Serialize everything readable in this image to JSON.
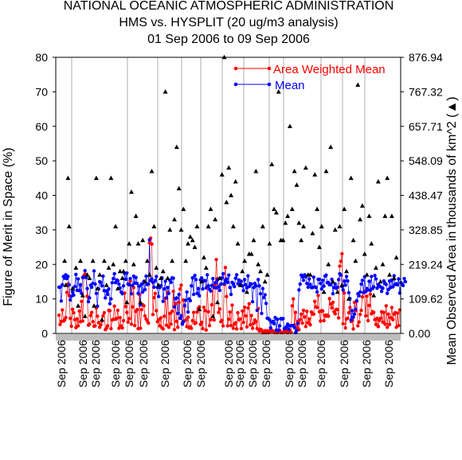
{
  "header": {
    "title_line1": "NATIONAL OCEANIC ATMOSPHERIC ADMINISTRATION",
    "title_line2": "HMS vs. HYSPLIT (20 ug/m3 analysis)",
    "title_line3": "01 Sep 2006 to 09 Sep 2006"
  },
  "chart_data": {
    "type": "line",
    "ylabel": "Figure of Merit in Space (%)",
    "y2label": "Mean Observed Area in thousands of km^2 (▲)",
    "ylim": [
      0,
      80
    ],
    "y2lim": [
      0,
      876.94
    ],
    "yticks": [
      "0",
      "10",
      "20",
      "30",
      "40",
      "50",
      "60",
      "70",
      "80"
    ],
    "y2ticks": [
      "0.00",
      "109.62",
      "219.24",
      "328.85",
      "438.47",
      "548.09",
      "657.71",
      "767.32",
      "876.94"
    ],
    "xtick_label": "Sep 2006",
    "x_count": 300,
    "series": [
      {
        "name": "Area Weighted Mean",
        "color": "#ff0000",
        "values": [
          5.3,
          2.6,
          3.5,
          6.8,
          3.6,
          3.9,
          4.6,
          11.9,
          14.4,
          11.0,
          4.4,
          2.1,
          7.0,
          6.0,
          4.0,
          1.7,
          4.2,
          2.2,
          6.5,
          3.4,
          9.3,
          3.6,
          16.7,
          17.2,
          16.5,
          10.8,
          2.4,
          2.7,
          5.2,
          6.1,
          3.4,
          2.1,
          2.2,
          7.4,
          5.0,
          3.1,
          1.8,
          2.5,
          3.6,
          5.1,
          6.0,
          1.1,
          1.5,
          2.2,
          6.7,
          6.6,
          1.4,
          3.9,
          4.1,
          7.9,
          4.1,
          4.4,
          6.7,
          1.5,
          4.6,
          2.2,
          1.6,
          3.7,
          11.7,
          7.8,
          6.1,
          3.3,
          4.3,
          15.2,
          2.7,
          7.7,
          13.3,
          2.3,
          6.4,
          6.9,
          1.4,
          11.3,
          1.5,
          6.9,
          8.3,
          8.0,
          5.1,
          4.2,
          3.6,
          3.0,
          26.2,
          27.6,
          25.9,
          5.5,
          10.4,
          11.6,
          6.6,
          3.4,
          4.0,
          2.2,
          4.5,
          1.6,
          1.3,
          5.0,
          10.2,
          2.4,
          11.9,
          1.8,
          5.8,
          2.7,
          6.4,
          12.2,
          1.1,
          8.6,
          3.5,
          1.8,
          9.0,
          12.9,
          14.0,
          3.1,
          9.7,
          7.9,
          3.9,
          2.0,
          4.7,
          1.6,
          1.9,
          1.5,
          3.7,
          6.1,
          2.9,
          3.1,
          6.2,
          7.2,
          7.7,
          2.6,
          3.2,
          1.4,
          7.6,
          6.6,
          1.0,
          13.6,
          6.3,
          2.3,
          4.0,
          8.3,
          13.9,
          3.9,
          14.1,
          21.4,
          15.9,
          6.1,
          7.1,
          3.4,
          3.8,
          2.2,
          14.2,
          19.1,
          10.7,
          2.2,
          4.1,
          6.2,
          2.3,
          8.2,
          1.5,
          2.7,
          3.1,
          1.3,
          6.0,
          4.0,
          4.2,
          1.4,
          6.5,
          3.2,
          7.6,
          5.1,
          1.9,
          7.4,
          8.6,
          2.5,
          5.2,
          1.5,
          2.9,
          3.9,
          3.4,
          1.4,
          7.2,
          0.7,
          1.2,
          1.0,
          0.2,
          0.1,
          0.8,
          0.1,
          0.8,
          0.2,
          0.4,
          1.0,
          0.9,
          0.4,
          0.6,
          0.1,
          0.8,
          0.2,
          0.9,
          0.9,
          0.3,
          0.2,
          0.2,
          0.8,
          0.6,
          0.8,
          0.1,
          0.7,
          0.8,
          0.3,
          8.0,
          10.0,
          2.5,
          6.1,
          1.6,
          3.5,
          1.1,
          4.0,
          5.6,
          3.0,
          6.7,
          4.8,
          2.0,
          6.4,
          3.1,
          4.2,
          2.5,
          6.2,
          5.6,
          5.6,
          9.3,
          7.7,
          7.5,
          11.0,
          6.3,
          3.6,
          6.6,
          6.5,
          3.7,
          5.3,
          5.0,
          5.3,
          5.0,
          10.1,
          8.5,
          7.4,
          9.0,
          6.3,
          5.7,
          7.0,
          6.9,
          4.5,
          19.5,
          20.9,
          23.1,
          2.8,
          11.7,
          1.6,
          4.2,
          4.4,
          6.0,
          7.5,
          3.5,
          3.8,
          1.3,
          9.0,
          6.6,
          9.3,
          2.2,
          3.3,
          5.5,
          6.7,
          10.6,
          11.8,
          12.2,
          5.1,
          10.8,
          3.7,
          8.1,
          11.4,
          5.7,
          6.3,
          6.1,
          4.0,
          2.6,
          4.4,
          2.0,
          3.8,
          4.4,
          6.3,
          3.3,
          6.1,
          2.7,
          8.0,
          1.8,
          5.6,
          2.6,
          4.6,
          7.5,
          4.0,
          5.6,
          6.0,
          1.8,
          5.9,
          2.3,
          6.8
        ]
      },
      {
        "name": "Mean",
        "color": "#0000ff",
        "values": [
          13.4,
          13.4,
          9.4,
          14.1,
          16.5,
          16.0,
          17.0,
          15.9,
          16.5,
          14.1,
          9.7,
          10.8,
          12.0,
          11.1,
          13.6,
          17.1,
          12.5,
          15.8,
          12.4,
          14.1,
          11.6,
          16.2,
          16.3,
          18.2,
          16.2,
          13.0,
          9.2,
          10.3,
          14.0,
          13.4,
          14.5,
          18.1,
          14.3,
          11.6,
          7.9,
          12.9,
          15.0,
          14.7,
          13.8,
          16.6,
          12.4,
          10.3,
          12.3,
          11.3,
          12.9,
          8.6,
          10.0,
          14.7,
          15.9,
          17.3,
          14.7,
          15.5,
          15.3,
          14.3,
          13.2,
          12.0,
          11.5,
          13.8,
          17.4,
          15.7,
          17.5,
          14.3,
          14.1,
          15.9,
          11.5,
          13.9,
          16.6,
          14.6,
          16.2,
          14.5,
          11.6,
          13.7,
          8.3,
          14.3,
          12.0,
          15.1,
          12.7,
          16.6,
          14.2,
          14.3,
          27.1,
          15.3,
          15.8,
          14.8,
          13.4,
          15.3,
          16.5,
          13.3,
          10.7,
          13.3,
          13.8,
          16.1,
          9.3,
          12.9,
          15.1,
          10.3,
          13.3,
          11.6,
          15.4,
          14.8,
          16.1,
          16.0,
          7.7,
          10.1,
          10.3,
          5.8,
          11.3,
          4.4,
          5.1,
          2.7,
          3.4,
          8.1,
          9.6,
          12.0,
          6.2,
          10.0,
          9.5,
          13.8,
          16.1,
          11.3,
          16.8,
          15.6,
          11.6,
          13.0,
          10.9,
          15.5,
          16.1,
          12.9,
          15.3,
          15.3,
          13.2,
          17.0,
          13.8,
          12.8,
          12.3,
          13.9,
          15.9,
          13.3,
          14.7,
          13.2,
          15.5,
          13.5,
          12.5,
          14.3,
          16.1,
          17.3,
          14.4,
          15.3,
          15.8,
          14.8,
          16.9,
          13.3,
          11.3,
          14.8,
          14.4,
          13.6,
          16.0,
          17.0,
          14.4,
          15.5,
          14.1,
          15.1,
          13.8,
          12.4,
          15.6,
          14.1,
          13.2,
          16.7,
          13.6,
          14.4,
          14.3,
          9.2,
          13.3,
          14.5,
          13.8,
          6.7,
          15.6,
          13.8,
          11.5,
          5.8,
          13.0,
          10.4,
          11.2,
          8.7,
          4.4,
          4.3,
          4.0,
          1.6,
          3.3,
          3.5,
          2.8,
          4.6,
          1.0,
          4.1,
          0.9,
          2.2,
          4.3,
          4.2,
          4.3,
          1.4,
          1.5,
          2.0,
          2.7,
          1.2,
          2.2,
          2.3,
          2.3,
          2.3,
          1.7,
          0.2,
          0.8,
          2.9,
          12.6,
          14.3,
          16.9,
          16.4,
          15.4,
          17.0,
          16.4,
          14.5,
          13.4,
          15.8,
          14.2,
          13.3,
          13.3,
          16.3,
          13.5,
          13.3,
          12.0,
          15.7,
          15.7,
          14.5,
          12.9,
          15.4,
          13.7,
          16.6,
          16.9,
          14.7,
          14.8,
          14.1,
          14.1,
          15.7,
          11.5,
          13.3,
          14.3,
          13.1,
          13.4,
          15.6,
          17.3,
          16.9,
          13.6,
          12.6,
          15.2,
          14.0,
          16.5,
          15.2,
          11.8,
          10.1,
          3.9,
          6.6,
          4.7,
          5.6,
          7.0,
          9.5,
          11.5,
          10.9,
          12.0,
          14.3,
          15.4,
          11.9,
          16.4,
          12.1,
          13.0,
          12.6,
          15.1,
          12.5,
          16.5,
          13.0,
          13.5,
          16.8,
          15.8,
          13.1,
          14.2,
          13.8,
          13.5,
          12.2,
          13.1,
          15.2,
          14.5,
          14.2,
          11.6,
          12.7,
          15.2,
          13.3,
          15.5,
          13.5,
          16.7,
          14.2,
          14.4,
          14.1,
          15.8,
          11.7,
          14.7,
          14.3,
          13.9,
          15.9,
          15.0
        ]
      },
      {
        "name": "Mean Observed Area",
        "color": "#000000",
        "axis": "right",
        "scale_note": "values in Figure of Merit axis units",
        "points": [
          [
            5,
            21
          ],
          [
            6,
            14
          ],
          [
            8,
            45
          ],
          [
            9,
            31
          ],
          [
            12,
            13
          ],
          [
            15,
            19
          ],
          [
            17,
            8
          ],
          [
            19,
            21
          ],
          [
            21,
            11
          ],
          [
            23,
            5
          ],
          [
            25,
            17
          ],
          [
            27,
            16
          ],
          [
            30,
            21
          ],
          [
            31,
            8
          ],
          [
            33,
            45
          ],
          [
            34,
            13
          ],
          [
            36,
            17
          ],
          [
            38,
            4
          ],
          [
            40,
            21
          ],
          [
            42,
            14
          ],
          [
            44,
            19
          ],
          [
            46,
            45
          ],
          [
            48,
            20
          ],
          [
            50,
            31
          ],
          [
            52,
            13
          ],
          [
            54,
            18
          ],
          [
            56,
            16
          ],
          [
            57,
            18
          ],
          [
            59,
            21
          ],
          [
            60,
            9
          ],
          [
            62,
            26
          ],
          [
            64,
            41
          ],
          [
            66,
            20
          ],
          [
            68,
            34
          ],
          [
            70,
            26
          ],
          [
            72,
            9
          ],
          [
            74,
            27
          ],
          [
            76,
            15
          ],
          [
            78,
            21
          ],
          [
            80,
            17
          ],
          [
            82,
            47
          ],
          [
            84,
            31
          ],
          [
            86,
            19
          ],
          [
            88,
            14
          ],
          [
            90,
            16
          ],
          [
            92,
            18
          ],
          [
            94,
            70
          ],
          [
            96,
            16
          ],
          [
            98,
            30
          ],
          [
            100,
            21
          ],
          [
            102,
            33
          ],
          [
            104,
            54
          ],
          [
            106,
            42
          ],
          [
            108,
            30
          ],
          [
            110,
            36
          ],
          [
            112,
            21
          ],
          [
            114,
            26
          ],
          [
            116,
            28
          ],
          [
            118,
            27
          ],
          [
            120,
            25
          ],
          [
            122,
            31
          ],
          [
            124,
            7
          ],
          [
            126,
            15
          ],
          [
            128,
            22
          ],
          [
            130,
            19
          ],
          [
            132,
            31
          ],
          [
            134,
            36
          ],
          [
            136,
            5
          ],
          [
            138,
            33
          ],
          [
            140,
            9
          ],
          [
            142,
            16
          ],
          [
            144,
            46
          ],
          [
            146,
            80
          ],
          [
            148,
            38
          ],
          [
            150,
            48
          ],
          [
            152,
            40
          ],
          [
            154,
            31
          ],
          [
            156,
            44
          ],
          [
            158,
            26
          ],
          [
            160,
            14
          ],
          [
            162,
            18
          ],
          [
            164,
            21
          ],
          [
            166,
            12
          ],
          [
            168,
            23
          ],
          [
            170,
            23
          ],
          [
            172,
            27
          ],
          [
            174,
            47
          ],
          [
            176,
            20
          ],
          [
            178,
            18
          ],
          [
            180,
            31
          ],
          [
            182,
            15
          ],
          [
            184,
            17
          ],
          [
            186,
            26
          ],
          [
            188,
            49
          ],
          [
            190,
            36
          ],
          [
            192,
            35
          ],
          [
            194,
            70
          ],
          [
            196,
            27
          ],
          [
            198,
            27
          ],
          [
            200,
            32
          ],
          [
            202,
            34
          ],
          [
            204,
            60
          ],
          [
            206,
            36
          ],
          [
            208,
            47
          ],
          [
            210,
            43
          ],
          [
            212,
            32
          ],
          [
            214,
            27
          ],
          [
            216,
            31
          ],
          [
            218,
            48
          ],
          [
            220,
            17
          ],
          [
            222,
            17
          ],
          [
            224,
            29
          ],
          [
            226,
            46
          ],
          [
            228,
            36
          ],
          [
            230,
            25
          ],
          [
            232,
            31
          ],
          [
            234,
            12
          ],
          [
            236,
            47
          ],
          [
            238,
            20
          ],
          [
            240,
            54
          ],
          [
            242,
            15
          ],
          [
            244,
            30
          ],
          [
            246,
            12
          ],
          [
            248,
            31
          ],
          [
            250,
            14
          ],
          [
            252,
            36
          ],
          [
            254,
            18
          ],
          [
            256,
            10
          ],
          [
            258,
            45
          ],
          [
            260,
            27
          ],
          [
            262,
            21
          ],
          [
            264,
            72
          ],
          [
            266,
            33
          ],
          [
            268,
            37
          ],
          [
            270,
            23
          ],
          [
            272,
            17
          ],
          [
            274,
            34
          ],
          [
            276,
            26
          ],
          [
            278,
            11
          ],
          [
            280,
            19
          ],
          [
            282,
            44
          ],
          [
            284,
            15
          ],
          [
            286,
            20
          ],
          [
            288,
            34
          ],
          [
            290,
            45
          ],
          [
            292,
            17
          ],
          [
            294,
            34
          ],
          [
            296,
            16
          ],
          [
            298,
            22
          ]
        ]
      }
    ]
  }
}
